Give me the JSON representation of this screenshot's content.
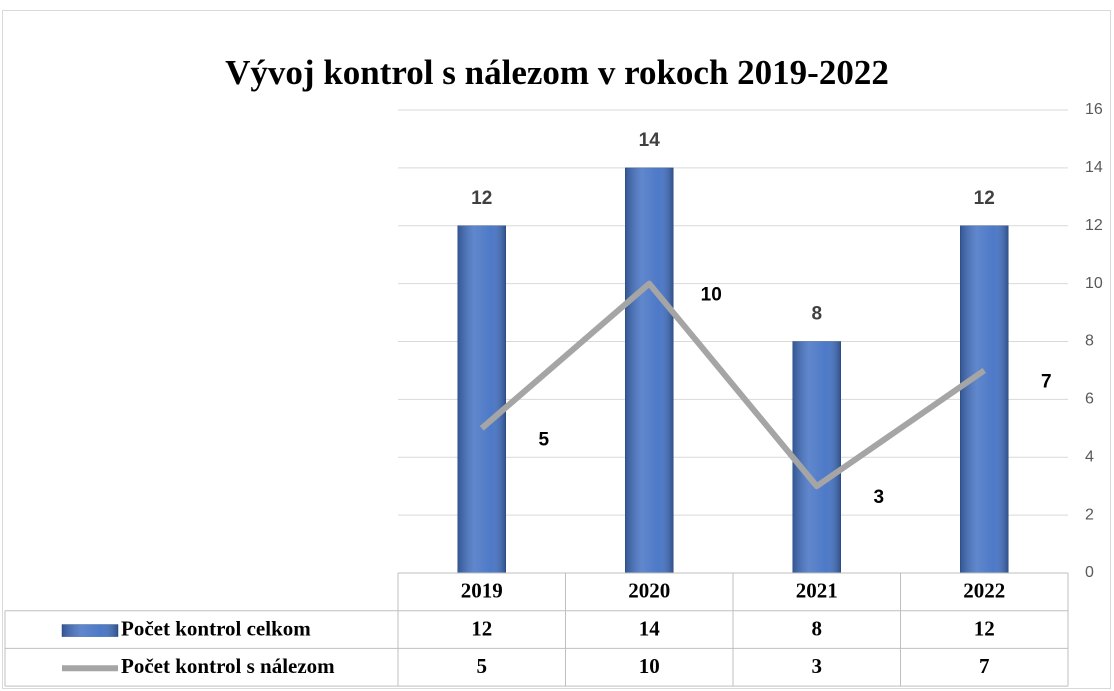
{
  "chart_data": {
    "type": "bar-line",
    "title": "Vývoj kontrol s nálezom v rokoch 2019-2022",
    "categories": [
      "2019",
      "2020",
      "2021",
      "2022"
    ],
    "series": [
      {
        "name": "Počet kontrol celkom",
        "type": "bar",
        "color": "#4472c4",
        "values": [
          12,
          14,
          8,
          12
        ]
      },
      {
        "name": "Počet kontrol s nálezom",
        "type": "line",
        "color": "#a5a5a5",
        "values": [
          5,
          10,
          3,
          7
        ]
      }
    ],
    "ylim": [
      0,
      16
    ],
    "yticks": [
      0,
      2,
      4,
      6,
      8,
      10,
      12,
      14,
      16
    ],
    "y_axis_side": "right",
    "grid": true,
    "data_table": true
  }
}
